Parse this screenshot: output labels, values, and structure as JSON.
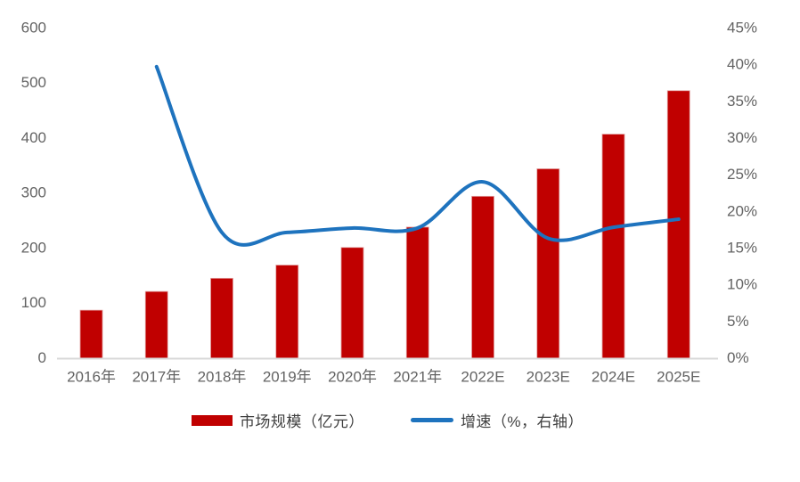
{
  "chart_data": {
    "type": "combo (bar + line, dual axis)",
    "title": "",
    "categories": [
      "2016年",
      "2017年",
      "2018年",
      "2019年",
      "2020年",
      "2021年",
      "2022E",
      "2023E",
      "2024E",
      "2025E"
    ],
    "series": [
      {
        "name": "市场规模（亿元）",
        "type": "bar",
        "y_axis": "left",
        "color": "#c00000",
        "values": [
          88,
          122,
          146,
          170,
          202,
          239,
          295,
          345,
          408,
          487
        ]
      },
      {
        "name": "增速（%，右轴）",
        "type": "line",
        "y_axis": "right",
        "color": "#1e73be",
        "smooth": true,
        "values": [
          null,
          39.8,
          17.2,
          17.2,
          17.8,
          17.8,
          24.1,
          16.4,
          17.9,
          19.0
        ]
      }
    ],
    "left_axis": {
      "min": 0,
      "max": 600,
      "step": 100,
      "tick_labels": [
        "0",
        "100",
        "200",
        "300",
        "400",
        "500",
        "600"
      ]
    },
    "right_axis": {
      "min": 0,
      "max": 45,
      "step": 5,
      "suffix": "%",
      "tick_labels": [
        "0%",
        "5%",
        "10%",
        "15%",
        "20%",
        "25%",
        "30%",
        "35%",
        "40%",
        "45%"
      ]
    },
    "grid": false,
    "legend_position": "bottom",
    "axis_line_color": "#d9d9d9",
    "tick_label_color": "#636363"
  }
}
